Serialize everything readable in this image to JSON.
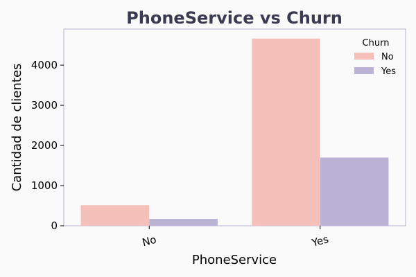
{
  "chart_data": {
    "type": "bar",
    "title": "PhoneService vs Churn",
    "xlabel": "PhoneService",
    "ylabel": "Cantidad de clientes",
    "categories": [
      "No",
      "Yes"
    ],
    "series": [
      {
        "name": "No",
        "values": [
          512,
          4662
        ],
        "color": "#f5bfba"
      },
      {
        "name": "Yes",
        "values": [
          170,
          1699
        ],
        "color": "#bab3d6"
      }
    ],
    "ylim": [
      0,
      4898
    ],
    "yticks": [
      0,
      1000,
      2000,
      3000,
      4000
    ],
    "legend": {
      "title": "Churn",
      "position": "top-right"
    },
    "grid": false,
    "x_tick_rotation": -15
  },
  "colors": {
    "background": "#fafafa",
    "frame": "#b7b0d8",
    "title": "#3a3a50"
  }
}
